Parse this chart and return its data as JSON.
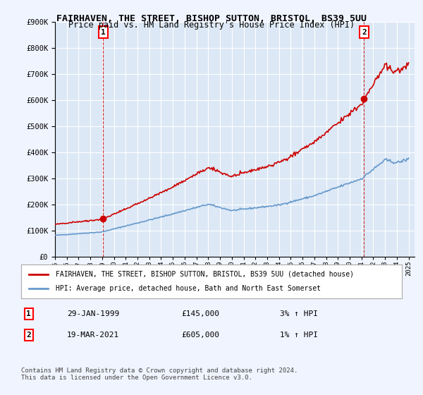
{
  "title": "FAIRHAVEN, THE STREET, BISHOP SUTTON, BRISTOL, BS39 5UU",
  "subtitle": "Price paid vs. HM Land Registry's House Price Index (HPI)",
  "bg_color": "#f0f4ff",
  "plot_bg_color": "#dce8f5",
  "grid_color": "#ffffff",
  "ylim": [
    0,
    900000
  ],
  "yticks": [
    0,
    100000,
    200000,
    300000,
    400000,
    500000,
    600000,
    700000,
    800000,
    900000
  ],
  "ytick_labels": [
    "£0",
    "£100K",
    "£200K",
    "£300K",
    "£400K",
    "£500K",
    "£600K",
    "£700K",
    "£800K",
    "£900K"
  ],
  "marker1_date": 1999.08,
  "marker1_value": 145000,
  "marker1_text": "29-JAN-1999",
  "marker1_price": "£145,000",
  "marker1_hpi": "3% ↑ HPI",
  "marker2_date": 2021.22,
  "marker2_value": 605000,
  "marker2_text": "19-MAR-2021",
  "marker2_price": "£605,000",
  "marker2_hpi": "1% ↑ HPI",
  "line1_color": "#cc0000",
  "line2_color": "#6699cc",
  "legend1_label": "FAIRHAVEN, THE STREET, BISHOP SUTTON, BRISTOL, BS39 5UU (detached house)",
  "legend2_label": "HPI: Average price, detached house, Bath and North East Somerset",
  "footer": "Contains HM Land Registry data © Crown copyright and database right 2024.\nThis data is licensed under the Open Government Licence v3.0."
}
